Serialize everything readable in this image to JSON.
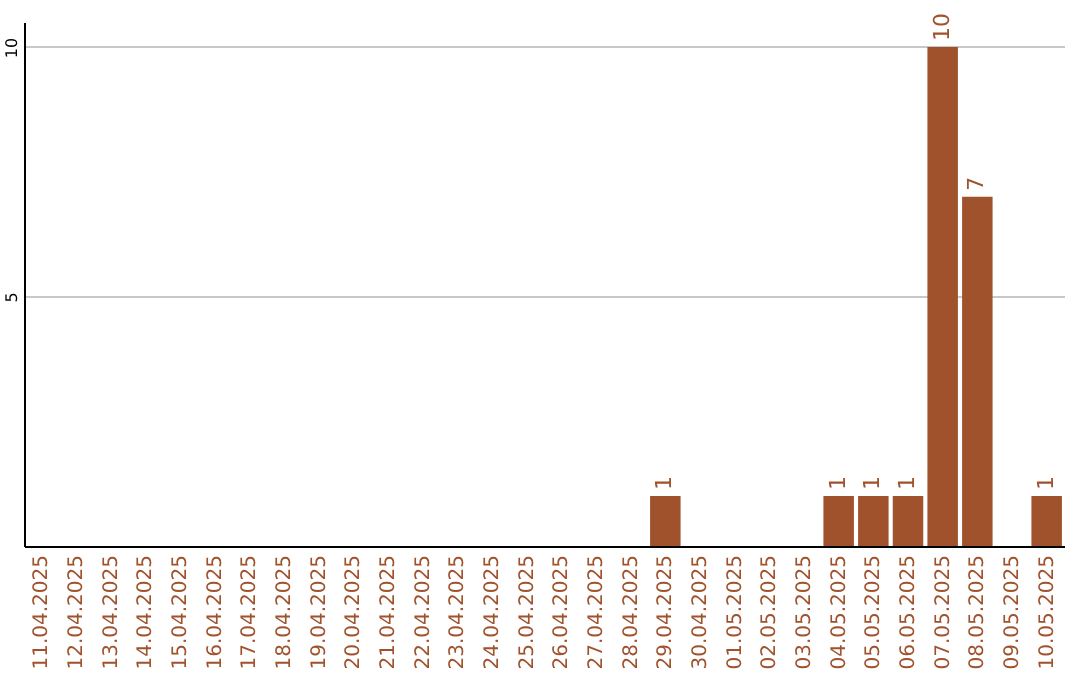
{
  "chart_data": {
    "type": "bar",
    "categories": [
      "11.04.2025",
      "12.04.2025",
      "13.04.2025",
      "14.04.2025",
      "15.04.2025",
      "16.04.2025",
      "17.04.2025",
      "18.04.2025",
      "19.04.2025",
      "20.04.2025",
      "21.04.2025",
      "22.04.2025",
      "23.04.2025",
      "24.04.2025",
      "25.04.2025",
      "26.04.2025",
      "27.04.2025",
      "28.04.2025",
      "29.04.2025",
      "30.04.2025",
      "01.05.2025",
      "02.05.2025",
      "03.05.2025",
      "04.05.2025",
      "05.05.2025",
      "06.05.2025",
      "07.05.2025",
      "08.05.2025",
      "09.05.2025",
      "10.05.2025"
    ],
    "values": [
      0,
      0,
      0,
      0,
      0,
      0,
      0,
      0,
      0,
      0,
      0,
      0,
      0,
      0,
      0,
      0,
      0,
      0,
      1,
      0,
      0,
      0,
      0,
      1,
      1,
      1,
      10,
      7,
      0,
      1
    ],
    "value_labels": [
      null,
      null,
      null,
      null,
      null,
      null,
      null,
      null,
      null,
      null,
      null,
      null,
      null,
      null,
      null,
      null,
      null,
      null,
      "1",
      null,
      null,
      null,
      null,
      "1",
      "1",
      "1",
      "10",
      "7",
      null,
      "1"
    ],
    "color": "#a0522d",
    "ylim": [
      0,
      10.5
    ],
    "yticks": [
      5,
      10
    ],
    "grid": "y"
  }
}
